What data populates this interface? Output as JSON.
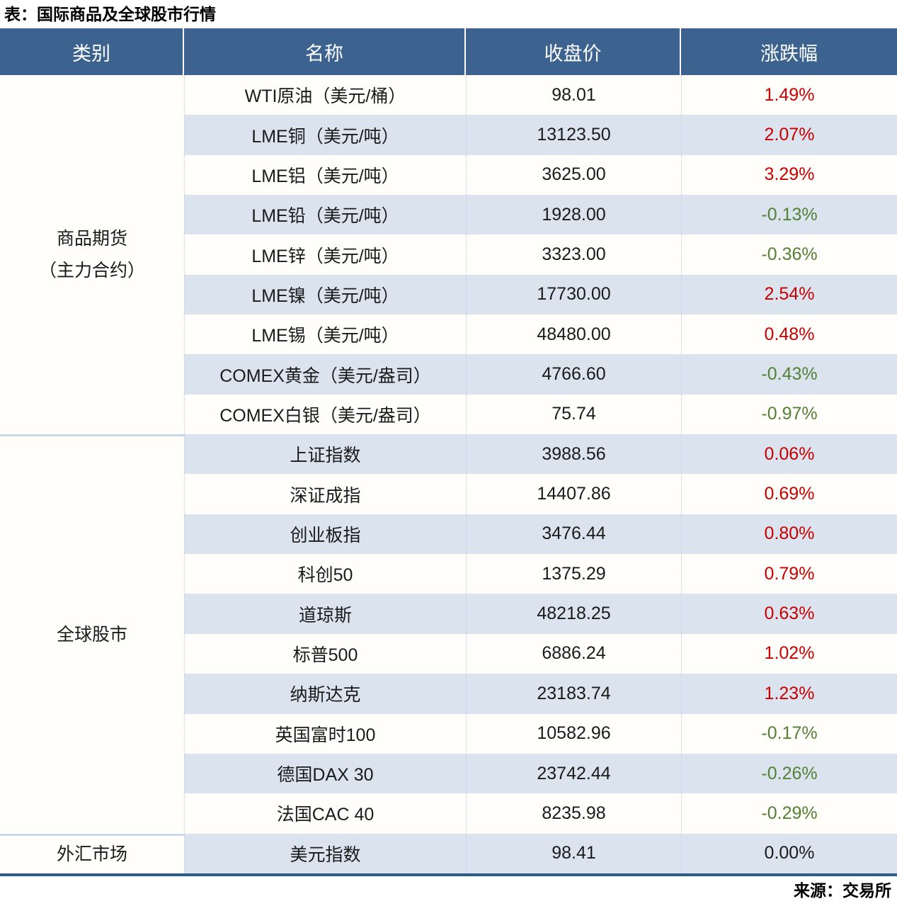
{
  "title": "表：国际商品及全球股市行情",
  "source": "来源：交易所",
  "colors": {
    "header_bg": "#3C6390",
    "row_alt": "#DBE3EF",
    "row_plain": "#FFFEFA",
    "positive": "#C80000",
    "negative": "#538135",
    "neutral": "#1A1A1A",
    "table_border": "#2F5B88"
  },
  "table": {
    "headers": [
      "类别",
      "名称",
      "收盘价",
      "涨跌幅"
    ],
    "sections": [
      {
        "category": "商品期货（主力合约）",
        "category_lines": [
          "商品期货",
          "（主力合约）"
        ],
        "rows": [
          {
            "name": "WTI原油（美元/桶）",
            "close": "98.01",
            "change": "1.49%",
            "direction": "up"
          },
          {
            "name": "LME铜（美元/吨）",
            "close": "13123.50",
            "change": "2.07%",
            "direction": "up"
          },
          {
            "name": "LME铝（美元/吨）",
            "close": "3625.00",
            "change": "3.29%",
            "direction": "up"
          },
          {
            "name": "LME铅（美元/吨）",
            "close": "1928.00",
            "change": "-0.13%",
            "direction": "down"
          },
          {
            "name": "LME锌（美元/吨）",
            "close": "3323.00",
            "change": "-0.36%",
            "direction": "down"
          },
          {
            "name": "LME镍（美元/吨）",
            "close": "17730.00",
            "change": "2.54%",
            "direction": "up"
          },
          {
            "name": "LME锡（美元/吨）",
            "close": "48480.00",
            "change": "0.48%",
            "direction": "up"
          },
          {
            "name": "COMEX黄金（美元/盎司）",
            "close": "4766.60",
            "change": "-0.43%",
            "direction": "down"
          },
          {
            "name": "COMEX白银（美元/盎司）",
            "close": "75.74",
            "change": "-0.97%",
            "direction": "down"
          }
        ]
      },
      {
        "category": "全球股市",
        "category_lines": [
          "全球股市"
        ],
        "rows": [
          {
            "name": "上证指数",
            "close": "3988.56",
            "change": "0.06%",
            "direction": "up"
          },
          {
            "name": "深证成指",
            "close": "14407.86",
            "change": "0.69%",
            "direction": "up"
          },
          {
            "name": "创业板指",
            "close": "3476.44",
            "change": "0.80%",
            "direction": "up"
          },
          {
            "name": "科创50",
            "close": "1375.29",
            "change": "0.79%",
            "direction": "up"
          },
          {
            "name": "道琼斯",
            "close": "48218.25",
            "change": "0.63%",
            "direction": "up"
          },
          {
            "name": "标普500",
            "close": "6886.24",
            "change": "1.02%",
            "direction": "up"
          },
          {
            "name": "纳斯达克",
            "close": "23183.74",
            "change": "1.23%",
            "direction": "up"
          },
          {
            "name": "英国富时100",
            "close": "10582.96",
            "change": "-0.17%",
            "direction": "down"
          },
          {
            "name": "德国DAX 30",
            "close": "23742.44",
            "change": "-0.26%",
            "direction": "down"
          },
          {
            "name": "法国CAC 40",
            "close": "8235.98",
            "change": "-0.29%",
            "direction": "down"
          }
        ]
      },
      {
        "category": "外汇市场",
        "category_lines": [
          "外汇市场"
        ],
        "rows": [
          {
            "name": "美元指数",
            "close": "98.41",
            "change": "0.00%",
            "direction": "flat"
          }
        ]
      }
    ]
  }
}
